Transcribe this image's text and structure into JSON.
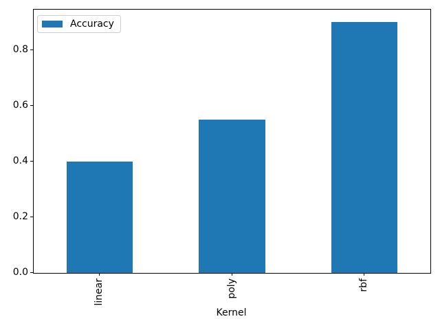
{
  "chart_data": {
    "type": "bar",
    "title": "",
    "categories": [
      "linear",
      "poly",
      "rbf"
    ],
    "series": [
      {
        "name": "Accuracy",
        "values": [
          0.4,
          0.55,
          0.9
        ]
      }
    ],
    "xlabel": "Kernel",
    "ylabel": "",
    "ylim": [
      0,
      0.945
    ],
    "yticks": [
      0.0,
      0.2,
      0.4,
      0.6,
      0.8
    ],
    "ytick_labels": [
      "0.0",
      "0.2",
      "0.4",
      "0.6",
      "0.8"
    ],
    "xtick_rotation_deg": 90,
    "grid": false,
    "bar_color": "#1f77b4",
    "legend": {
      "position": "upper left",
      "entries": [
        "Accuracy"
      ]
    }
  }
}
